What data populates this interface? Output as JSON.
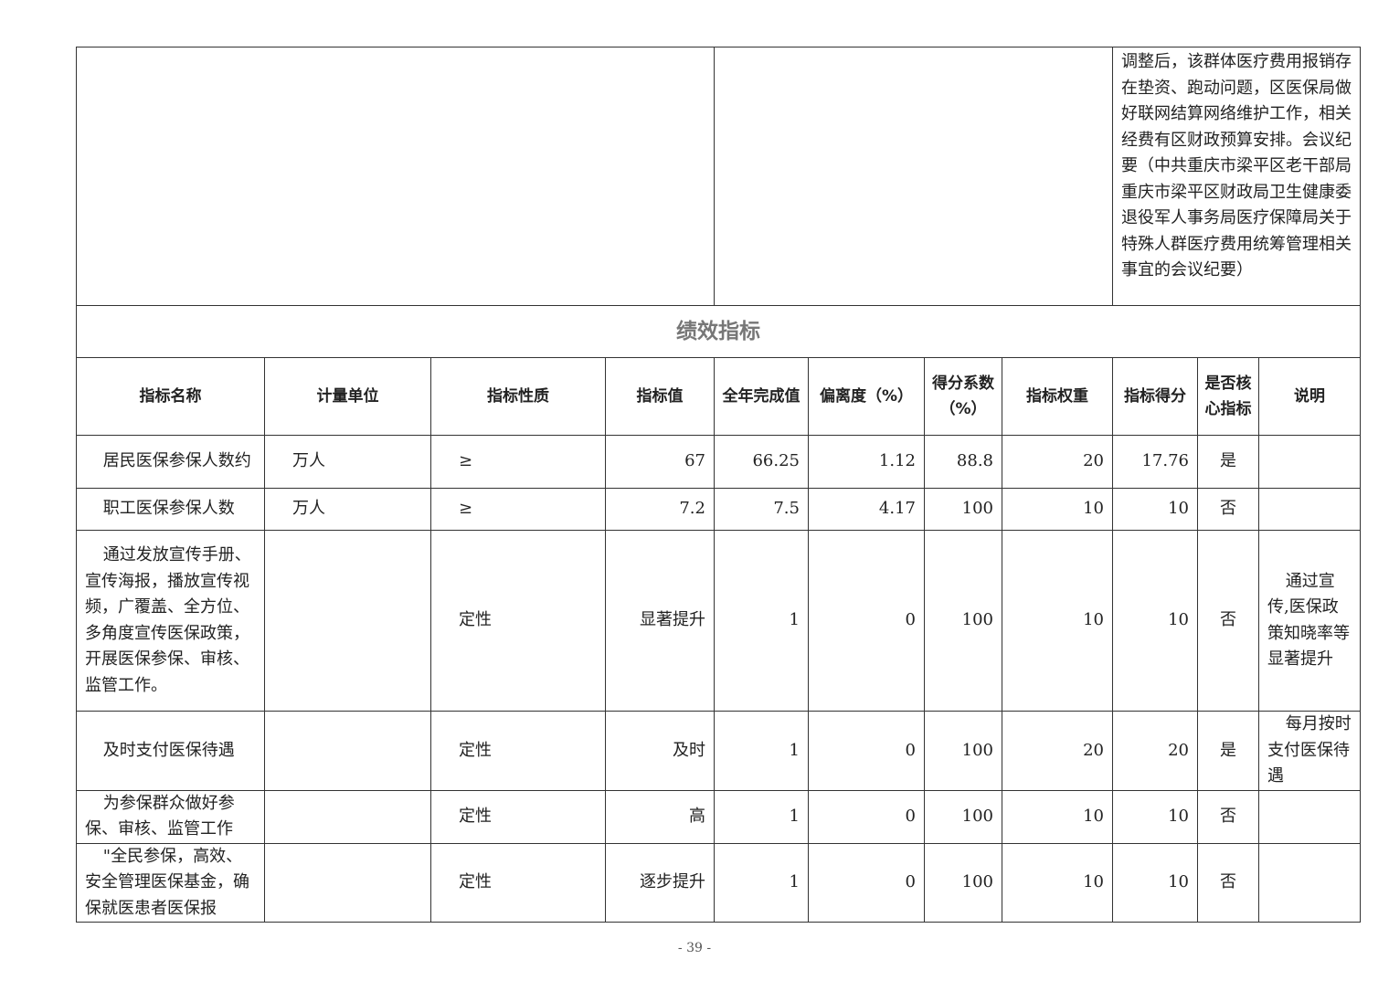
{
  "top_note": "调整后，该群体医疗费用报销存在垫资、跑动问题，区医保局做好联网结算网络维护工作，相关经费有区财政预算安排。会议纪要（中共重庆市梁平区老干部局重庆市梁平区财政局卫生健康委退役军人事务局医疗保障局关于特殊人群医疗费用统筹管理相关事宜的会议纪要）",
  "section_title": "绩效指标",
  "headers": [
    "指标名称",
    "计量单位",
    "指标性质",
    "指标值",
    "全年完成值",
    "偏离度（%）",
    "得分系数（%）",
    "指标权重",
    "指标得分",
    "是否核心指标",
    "说明"
  ],
  "rows": [
    {
      "name": "居民医保参保人数约",
      "unit": "万人",
      "nature": "≥",
      "target": "67",
      "actual": "66.25",
      "deviation": "1.12",
      "coef": "88.8",
      "weight": "20",
      "score": "17.76",
      "core": "是",
      "note": ""
    },
    {
      "name": "职工医保参保人数",
      "unit": "万人",
      "nature": "≥",
      "target": "7.2",
      "actual": "7.5",
      "deviation": "4.17",
      "coef": "100",
      "weight": "10",
      "score": "10",
      "core": "否",
      "note": ""
    },
    {
      "name": "通过发放宣传手册、宣传海报，播放宣传视频，广覆盖、全方位、多角度宣传医保政策，开展医保参保、审核、监管工作。",
      "unit": "",
      "nature": "定性",
      "target": "显著提升",
      "actual": "1",
      "deviation": "0",
      "coef": "100",
      "weight": "10",
      "score": "10",
      "core": "否",
      "note": "通过宣传,医保政策知晓率等显著提升"
    },
    {
      "name": "及时支付医保待遇",
      "unit": "",
      "nature": "定性",
      "target": "及时",
      "actual": "1",
      "deviation": "0",
      "coef": "100",
      "weight": "20",
      "score": "20",
      "core": "是",
      "note": "每月按时支付医保待遇"
    },
    {
      "name": "为参保群众做好参保、审核、监管工作",
      "unit": "",
      "nature": "定性",
      "target": "高",
      "actual": "1",
      "deviation": "0",
      "coef": "100",
      "weight": "10",
      "score": "10",
      "core": "否",
      "note": ""
    },
    {
      "name": "\"全民参保，高效、安全管理医保基金，确保就医患者医保报",
      "unit": "",
      "nature": "定性",
      "target": "逐步提升",
      "actual": "1",
      "deviation": "0",
      "coef": "100",
      "weight": "10",
      "score": "10",
      "core": "否",
      "note": ""
    }
  ],
  "page_number": "- 39 -"
}
